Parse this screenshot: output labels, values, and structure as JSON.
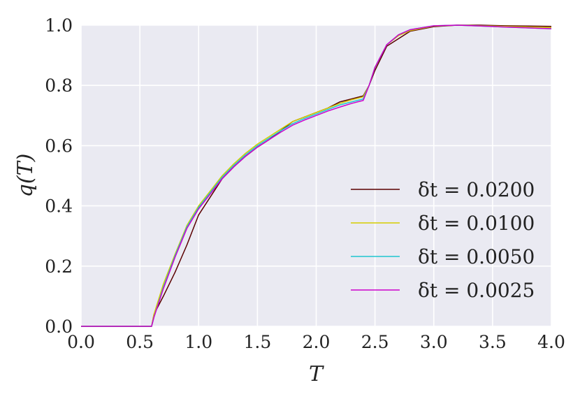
{
  "chart_data": {
    "type": "line",
    "title": "",
    "xlabel": "T",
    "ylabel": "q(T)",
    "xlim": [
      0.0,
      4.0
    ],
    "ylim": [
      0.0,
      1.0
    ],
    "xticks": [
      "0.0",
      "0.5",
      "1.0",
      "1.5",
      "2.0",
      "2.5",
      "3.0",
      "3.5",
      "4.0"
    ],
    "yticks": [
      "0.0",
      "0.2",
      "0.4",
      "0.6",
      "0.8",
      "1.0"
    ],
    "grid": true,
    "background": "#eaeaf2",
    "legend_position": "lower-right",
    "series": [
      {
        "name": "δt = 0.0200",
        "color": "#5a0000",
        "x": [
          0.0,
          0.6,
          0.62,
          0.7,
          0.8,
          0.9,
          1.0,
          1.1,
          1.2,
          1.3,
          1.4,
          1.5,
          1.6,
          1.7,
          1.8,
          1.9,
          2.0,
          2.1,
          2.2,
          2.3,
          2.4,
          2.45,
          2.5,
          2.6,
          2.8,
          3.0,
          3.2,
          3.4,
          3.6,
          3.8,
          4.0
        ],
        "y": [
          0.0,
          0.0,
          0.04,
          0.1,
          0.18,
          0.27,
          0.37,
          0.43,
          0.49,
          0.53,
          0.565,
          0.595,
          0.62,
          0.65,
          0.68,
          0.695,
          0.71,
          0.725,
          0.745,
          0.755,
          0.765,
          0.8,
          0.85,
          0.93,
          0.98,
          0.995,
          1.0,
          1.0,
          0.998,
          0.997,
          0.996
        ]
      },
      {
        "name": "δt = 0.0100",
        "color": "#d4cc00",
        "x": [
          0.0,
          0.6,
          0.62,
          0.7,
          0.8,
          0.9,
          1.0,
          1.1,
          1.2,
          1.3,
          1.4,
          1.5,
          1.6,
          1.7,
          1.8,
          1.9,
          2.0,
          2.1,
          2.2,
          2.3,
          2.4,
          2.45,
          2.5,
          2.6,
          2.7,
          2.8,
          3.0,
          3.2,
          3.4,
          3.6,
          3.8,
          4.0
        ],
        "y": [
          0.0,
          0.0,
          0.04,
          0.14,
          0.24,
          0.335,
          0.4,
          0.45,
          0.5,
          0.54,
          0.575,
          0.605,
          0.63,
          0.655,
          0.68,
          0.695,
          0.71,
          0.725,
          0.74,
          0.752,
          0.762,
          0.8,
          0.86,
          0.935,
          0.965,
          0.982,
          0.997,
          1.0,
          0.998,
          0.996,
          0.994,
          0.992
        ]
      },
      {
        "name": "δt = 0.0050",
        "color": "#1ec6d0",
        "x": [
          0.0,
          0.6,
          0.62,
          0.7,
          0.8,
          0.9,
          1.0,
          1.1,
          1.2,
          1.3,
          1.4,
          1.5,
          1.6,
          1.7,
          1.8,
          1.9,
          2.0,
          2.1,
          2.2,
          2.3,
          2.4,
          2.45,
          2.5,
          2.6,
          2.7,
          2.8,
          3.0,
          3.2,
          3.4,
          3.6,
          3.8,
          4.0
        ],
        "y": [
          0.0,
          0.0,
          0.03,
          0.13,
          0.235,
          0.33,
          0.395,
          0.445,
          0.495,
          0.535,
          0.57,
          0.6,
          0.625,
          0.65,
          0.673,
          0.69,
          0.705,
          0.72,
          0.735,
          0.745,
          0.755,
          0.8,
          0.86,
          0.935,
          0.968,
          0.985,
          0.998,
          1.0,
          0.997,
          0.994,
          0.991,
          0.988
        ]
      },
      {
        "name": "δt = 0.0025",
        "color": "#cc00cc",
        "x": [
          0.0,
          0.6,
          0.62,
          0.7,
          0.8,
          0.9,
          1.0,
          1.1,
          1.2,
          1.3,
          1.4,
          1.5,
          1.6,
          1.7,
          1.8,
          1.9,
          2.0,
          2.1,
          2.2,
          2.3,
          2.4,
          2.45,
          2.5,
          2.6,
          2.7,
          2.8,
          3.0,
          3.2,
          3.4,
          3.6,
          3.8,
          4.0
        ],
        "y": [
          0.0,
          0.0,
          0.03,
          0.125,
          0.23,
          0.325,
          0.39,
          0.44,
          0.49,
          0.53,
          0.565,
          0.595,
          0.62,
          0.645,
          0.668,
          0.685,
          0.7,
          0.715,
          0.728,
          0.74,
          0.75,
          0.8,
          0.86,
          0.935,
          0.968,
          0.985,
          0.998,
          1.0,
          0.997,
          0.994,
          0.991,
          0.988
        ]
      }
    ]
  }
}
